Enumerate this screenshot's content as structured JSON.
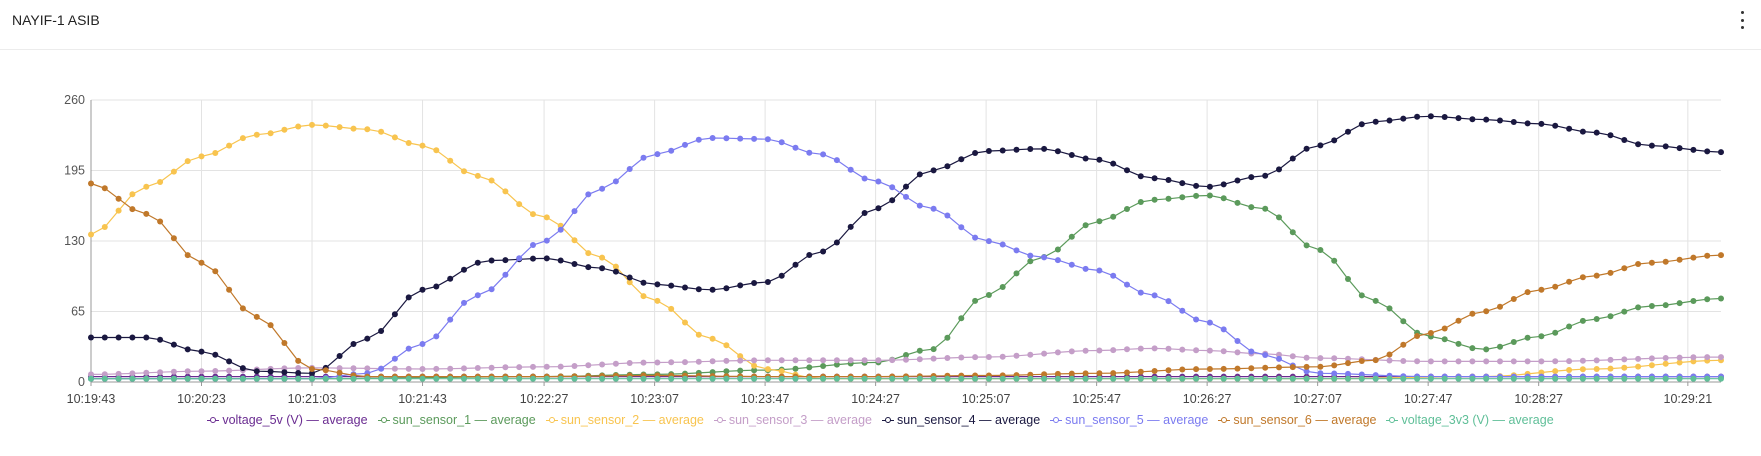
{
  "panel": {
    "title": "NAYIF-1 ASIB",
    "menu_icon": "kebab-vertical-icon"
  },
  "chart_data": {
    "type": "line",
    "ylim": [
      0,
      260
    ],
    "yticks": [
      0,
      65,
      130,
      195,
      260
    ],
    "xlim": [
      "10:19:43",
      "10:29:33"
    ],
    "xticks": [
      "10:19:43",
      "10:20:23",
      "10:21:03",
      "10:21:43",
      "10:22:27",
      "10:23:07",
      "10:23:47",
      "10:24:27",
      "10:25:07",
      "10:25:47",
      "10:26:27",
      "10:27:07",
      "10:27:47",
      "10:28:27",
      "10:29:21"
    ],
    "grid": true,
    "legend_position": "bottom",
    "series": [
      {
        "name": "voltage_5v (V) — average",
        "color": "#6a2c91",
        "points": [
          [
            "10:19:43",
            5
          ],
          [
            "10:21:03",
            5
          ],
          [
            "10:23:47",
            5
          ],
          [
            "10:27:07",
            5
          ],
          [
            "10:29:33",
            5
          ]
        ]
      },
      {
        "name": "sun_sensor_1 — average",
        "color": "#5b9a5b",
        "points": [
          [
            "10:19:43",
            3
          ],
          [
            "10:21:03",
            3
          ],
          [
            "10:22:27",
            5
          ],
          [
            "10:23:07",
            7
          ],
          [
            "10:23:47",
            11
          ],
          [
            "10:24:27",
            18
          ],
          [
            "10:24:47",
            30
          ],
          [
            "10:25:07",
            80
          ],
          [
            "10:25:27",
            115
          ],
          [
            "10:25:47",
            148
          ],
          [
            "10:26:07",
            168
          ],
          [
            "10:26:27",
            172
          ],
          [
            "10:26:47",
            160
          ],
          [
            "10:27:07",
            122
          ],
          [
            "10:27:27",
            75
          ],
          [
            "10:27:47",
            42
          ],
          [
            "10:28:07",
            30
          ],
          [
            "10:28:27",
            42
          ],
          [
            "10:28:47",
            58
          ],
          [
            "10:29:07",
            70
          ],
          [
            "10:29:33",
            77
          ]
        ]
      },
      {
        "name": "sun_sensor_2 — average",
        "color": "#f8c44f",
        "points": [
          [
            "10:19:43",
            136
          ],
          [
            "10:20:03",
            180
          ],
          [
            "10:20:23",
            208
          ],
          [
            "10:20:43",
            228
          ],
          [
            "10:21:03",
            237
          ],
          [
            "10:21:23",
            233
          ],
          [
            "10:21:43",
            218
          ],
          [
            "10:22:03",
            190
          ],
          [
            "10:22:27",
            152
          ],
          [
            "10:22:47",
            115
          ],
          [
            "10:23:07",
            75
          ],
          [
            "10:23:27",
            40
          ],
          [
            "10:23:47",
            12
          ],
          [
            "10:24:07",
            3
          ],
          [
            "10:27:07",
            3
          ],
          [
            "10:28:07",
            5
          ],
          [
            "10:28:47",
            12
          ],
          [
            "10:29:33",
            20
          ]
        ]
      },
      {
        "name": "sun_sensor_3 — average",
        "color": "#c49ec8",
        "points": [
          [
            "10:19:43",
            7
          ],
          [
            "10:20:23",
            10
          ],
          [
            "10:21:03",
            13
          ],
          [
            "10:21:43",
            12
          ],
          [
            "10:22:27",
            14
          ],
          [
            "10:23:07",
            18
          ],
          [
            "10:23:47",
            20
          ],
          [
            "10:24:27",
            20
          ],
          [
            "10:25:07",
            23
          ],
          [
            "10:25:47",
            29
          ],
          [
            "10:26:07",
            31
          ],
          [
            "10:26:27",
            29
          ],
          [
            "10:26:47",
            26
          ],
          [
            "10:27:07",
            22
          ],
          [
            "10:27:47",
            19
          ],
          [
            "10:28:27",
            19
          ],
          [
            "10:29:33",
            23
          ]
        ]
      },
      {
        "name": "sun_sensor_4 — average",
        "color": "#1a1840",
        "points": [
          [
            "10:19:43",
            41
          ],
          [
            "10:20:03",
            41
          ],
          [
            "10:20:23",
            28
          ],
          [
            "10:20:43",
            10
          ],
          [
            "10:21:03",
            8
          ],
          [
            "10:21:23",
            40
          ],
          [
            "10:21:43",
            85
          ],
          [
            "10:22:07",
            112
          ],
          [
            "10:22:27",
            114
          ],
          [
            "10:22:47",
            105
          ],
          [
            "10:23:07",
            90
          ],
          [
            "10:23:27",
            85
          ],
          [
            "10:23:47",
            92
          ],
          [
            "10:24:07",
            120
          ],
          [
            "10:24:27",
            160
          ],
          [
            "10:24:47",
            195
          ],
          [
            "10:25:07",
            213
          ],
          [
            "10:25:27",
            215
          ],
          [
            "10:25:47",
            205
          ],
          [
            "10:26:07",
            188
          ],
          [
            "10:26:27",
            180
          ],
          [
            "10:26:47",
            190
          ],
          [
            "10:27:07",
            218
          ],
          [
            "10:27:27",
            240
          ],
          [
            "10:27:47",
            245
          ],
          [
            "10:28:07",
            242
          ],
          [
            "10:28:27",
            238
          ],
          [
            "10:28:47",
            230
          ],
          [
            "10:29:07",
            218
          ],
          [
            "10:29:33",
            212
          ]
        ]
      },
      {
        "name": "sun_sensor_5 — average",
        "color": "#7b7bf0",
        "points": [
          [
            "10:19:43",
            3
          ],
          [
            "10:21:03",
            3
          ],
          [
            "10:21:23",
            8
          ],
          [
            "10:21:43",
            35
          ],
          [
            "10:22:03",
            80
          ],
          [
            "10:22:27",
            130
          ],
          [
            "10:22:47",
            178
          ],
          [
            "10:23:07",
            210
          ],
          [
            "10:23:27",
            225
          ],
          [
            "10:23:47",
            224
          ],
          [
            "10:24:07",
            210
          ],
          [
            "10:24:27",
            185
          ],
          [
            "10:24:47",
            160
          ],
          [
            "10:25:07",
            130
          ],
          [
            "10:25:27",
            115
          ],
          [
            "10:25:47",
            103
          ],
          [
            "10:26:07",
            80
          ],
          [
            "10:26:27",
            55
          ],
          [
            "10:26:47",
            25
          ],
          [
            "10:27:07",
            8
          ],
          [
            "10:27:47",
            5
          ],
          [
            "10:29:33",
            5
          ]
        ]
      },
      {
        "name": "sun_sensor_6 — average",
        "color": "#c0782a",
        "points": [
          [
            "10:19:43",
            183
          ],
          [
            "10:20:03",
            155
          ],
          [
            "10:20:23",
            110
          ],
          [
            "10:20:43",
            60
          ],
          [
            "10:21:03",
            12
          ],
          [
            "10:21:23",
            5
          ],
          [
            "10:22:27",
            5
          ],
          [
            "10:23:07",
            6
          ],
          [
            "10:23:47",
            5
          ],
          [
            "10:24:27",
            5
          ],
          [
            "10:25:07",
            6
          ],
          [
            "10:25:47",
            8
          ],
          [
            "10:26:27",
            12
          ],
          [
            "10:27:07",
            14
          ],
          [
            "10:27:27",
            20
          ],
          [
            "10:27:47",
            45
          ],
          [
            "10:28:07",
            65
          ],
          [
            "10:28:27",
            85
          ],
          [
            "10:28:47",
            98
          ],
          [
            "10:29:07",
            110
          ],
          [
            "10:29:33",
            117
          ]
        ]
      },
      {
        "name": "voltage_3v3 (V) — average",
        "color": "#5fbf98",
        "points": [
          [
            "10:19:43",
            3
          ],
          [
            "10:23:07",
            3
          ],
          [
            "10:26:27",
            3
          ],
          [
            "10:29:33",
            3
          ]
        ]
      }
    ]
  }
}
